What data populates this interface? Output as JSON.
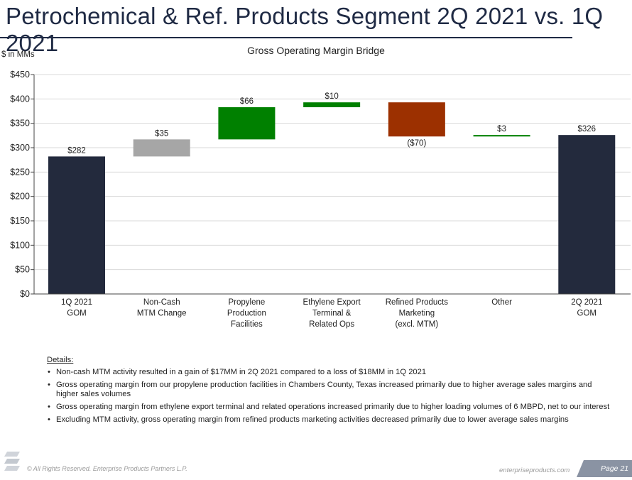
{
  "header": {
    "title": "Petrochemical & Ref. Products Segment 2Q 2021 vs. 1Q 2021"
  },
  "chart_data": {
    "type": "bar",
    "subtype": "waterfall",
    "title": "Gross Operating Margin Bridge",
    "unit_label": "$ in MMs",
    "ylim": [
      0,
      450
    ],
    "yticks": [
      0,
      50,
      100,
      150,
      200,
      250,
      300,
      350,
      400,
      450
    ],
    "ytick_labels": [
      "$0",
      "$50",
      "$100",
      "$150",
      "$200",
      "$250",
      "$300",
      "$350",
      "$400",
      "$450"
    ],
    "grid": true,
    "categories": [
      [
        "1Q 2021",
        "GOM"
      ],
      [
        "Non-Cash",
        "MTM Change"
      ],
      [
        "Propylene",
        "Production",
        "Facilities"
      ],
      [
        "Ethylene Export",
        "Terminal &",
        "Related Ops"
      ],
      [
        "Refined Products",
        "Marketing",
        "(excl. MTM)"
      ],
      [
        "Other"
      ],
      [
        "2Q 2021",
        "GOM"
      ]
    ],
    "bars": [
      {
        "start": 0,
        "end": 282,
        "label": "$282",
        "kind": "total"
      },
      {
        "start": 282,
        "end": 317,
        "label": "$35",
        "kind": "increase"
      },
      {
        "start": 317,
        "end": 383,
        "label": "$66",
        "kind": "increase"
      },
      {
        "start": 383,
        "end": 393,
        "label": "$10",
        "kind": "increase"
      },
      {
        "start": 393,
        "end": 323,
        "label": "($70)",
        "kind": "decrease"
      },
      {
        "start": 323,
        "end": 326,
        "label": "$3",
        "kind": "increase"
      },
      {
        "start": 0,
        "end": 326,
        "label": "$326",
        "kind": "total"
      }
    ],
    "colors": [
      "#232a3d",
      "#a6a6a6",
      "#008000",
      "#008000",
      "#9c3000",
      "#008000",
      "#232a3d"
    ]
  },
  "details": {
    "heading": "Details:",
    "bullets": [
      "Non-cash MTM activity resulted in a gain of $17MM in 2Q 2021 compared to a loss of $18MM in 1Q 2021",
      "Gross operating margin from our propylene production facilities in Chambers County, Texas increased primarily due to higher average sales margins and higher sales volumes",
      "Gross operating margin from ethylene export terminal and related operations increased primarily due to higher loading volumes of 6 MBPD, net to our interest",
      "Excluding MTM activity, gross operating margin from refined products marketing activities decreased primarily due to lower average sales margins"
    ]
  },
  "footer": {
    "copyright": "© All Rights Reserved. Enterprise Products Partners L.P.",
    "site": "enterpriseproducts.com",
    "page": "Page 21"
  }
}
